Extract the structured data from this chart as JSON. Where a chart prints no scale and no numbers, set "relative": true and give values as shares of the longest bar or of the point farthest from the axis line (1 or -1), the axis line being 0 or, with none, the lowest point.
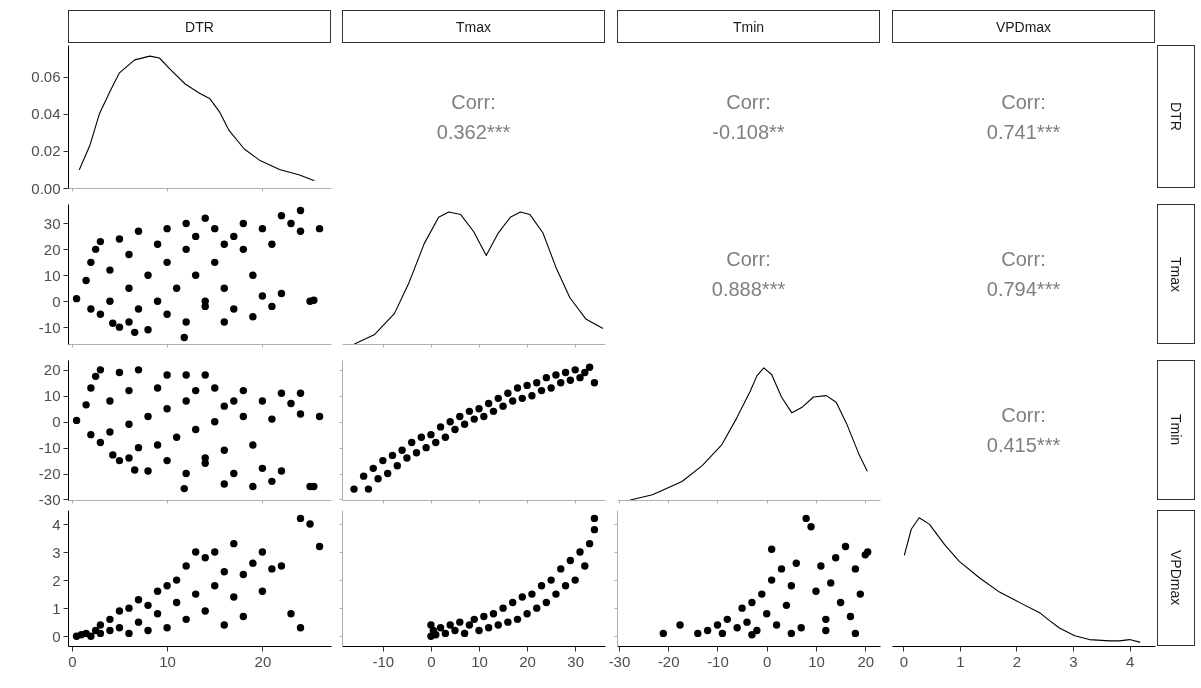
{
  "chart_data": [
    {
      "type": "line",
      "title": "DTR",
      "color": "#000000",
      "xlim": [
        -0.4,
        27.2
      ],
      "xticks": [
        0,
        10,
        20
      ],
      "ylim": [
        0,
        0.077
      ],
      "yticks": [
        {
          "value": 0,
          "label": "0.00"
        },
        0.02,
        0.04,
        0.06
      ],
      "tick_labels": "y",
      "x": [
        0.8,
        1.9,
        2.9,
        4.0,
        5.0,
        6.6,
        8.2,
        9.2,
        10.3,
        11.9,
        13.4,
        14.5,
        15.5,
        16.5,
        18.1,
        19.7,
        21.8,
        23.9,
        25.4
      ],
      "values": [
        0.01,
        0.023,
        0.04,
        0.052,
        0.062,
        0.069,
        0.071,
        0.07,
        0.064,
        0.056,
        0.051,
        0.048,
        0.041,
        0.031,
        0.021,
        0.015,
        0.01,
        0.007,
        0.004
      ]
    },
    {
      "type": "other",
      "title": "Tmax",
      "annotations": [
        "Corr:",
        "0.362***"
      ]
    },
    {
      "type": "other",
      "title": "Tmin",
      "annotations": [
        "Corr:",
        "-0.108**"
      ]
    },
    {
      "type": "other",
      "title": "VPDmax",
      "y2label": "DTR",
      "annotations": [
        "Corr:",
        "0.741***"
      ]
    },
    {
      "type": "scatter",
      "color": "#000000",
      "marker": "circle",
      "xlim": [
        -0.4,
        27.2
      ],
      "xticks": [
        0,
        10,
        20
      ],
      "ylim": [
        -16.5,
        37.5
      ],
      "yticks": [
        -10,
        0,
        10,
        20,
        30
      ],
      "tick_labels": "y",
      "x": [
        0.5,
        1.5,
        2,
        2.5,
        2,
        3,
        3,
        4,
        4,
        4.3,
        5,
        5,
        6,
        6,
        6,
        6.6,
        7,
        7,
        8,
        8,
        9,
        9,
        10,
        10,
        10,
        11,
        11.8,
        12,
        12,
        12,
        13,
        13,
        14,
        14,
        14,
        15,
        15,
        16,
        16,
        16,
        17,
        17,
        18,
        18,
        19,
        19,
        20,
        20,
        21,
        21,
        22,
        22,
        23,
        24,
        24,
        25,
        25.4,
        26
      ],
      "values": [
        1,
        8,
        15,
        20,
        -3,
        -5,
        23,
        0,
        12,
        -8.5,
        24,
        -10,
        -8,
        5,
        18,
        -12,
        27,
        -3,
        10,
        -11,
        22,
        0,
        28,
        -5,
        15,
        5,
        -14,
        30,
        -8,
        20,
        10,
        25,
        32,
        0,
        -2,
        15,
        28,
        22,
        5,
        -8,
        -3,
        25,
        20,
        30,
        10,
        -6,
        28,
        2,
        22,
        -2,
        3,
        33,
        30,
        35,
        27,
        0,
        0.4,
        28
      ]
    },
    {
      "type": "line",
      "color": "#000000",
      "relative": true,
      "xlim": [
        -18.5,
        36.2
      ],
      "xticks": [
        -10,
        0,
        10,
        20,
        30
      ],
      "tick_labels": false,
      "x": [
        -15.9,
        -11.8,
        -7.6,
        -4.5,
        -1.4,
        1.6,
        3.7,
        6.2,
        8.9,
        11.5,
        14.0,
        16.5,
        18.6,
        20.6,
        23.3,
        26.0,
        28.9,
        32.2,
        35.7
      ],
      "values": [
        0,
        0.07,
        0.23,
        0.47,
        0.76,
        0.96,
        1,
        0.98,
        0.85,
        0.67,
        0.84,
        0.96,
        1,
        0.98,
        0.84,
        0.58,
        0.35,
        0.19,
        0.12
      ]
    },
    {
      "type": "other",
      "annotations": [
        "Corr:",
        "0.888***"
      ]
    },
    {
      "type": "other",
      "y2label": "Tmax",
      "annotations": [
        "Corr:",
        "0.794***"
      ]
    },
    {
      "type": "scatter",
      "color": "#000000",
      "marker": "circle",
      "xlim": [
        -0.4,
        27.2
      ],
      "xticks": [
        0,
        10,
        20
      ],
      "ylim": [
        -30.2,
        23.8
      ],
      "yticks": [
        -30,
        -20,
        -10,
        0,
        10,
        20
      ],
      "tick_labels": "y",
      "x": [
        0.5,
        1.5,
        2,
        2.5,
        2,
        3,
        3,
        4,
        4,
        4.3,
        5,
        5,
        6,
        6,
        6,
        6.6,
        7,
        7,
        8,
        8,
        9,
        9,
        10,
        10,
        10,
        11,
        11.8,
        12,
        12,
        12,
        13,
        13,
        14,
        14,
        14,
        15,
        15,
        16,
        16,
        16,
        17,
        17,
        18,
        18,
        19,
        19,
        20,
        20,
        21,
        21,
        22,
        22,
        23,
        24,
        24,
        25,
        25.4,
        26
      ],
      "values": [
        0.5,
        6.5,
        13,
        17.5,
        -5,
        -8,
        20,
        -4,
        8,
        -12.8,
        19,
        -15,
        -14,
        -1,
        12,
        -18.6,
        20,
        -10,
        2,
        -19,
        13,
        -9,
        18,
        -15,
        5,
        -6,
        -25.8,
        18,
        -20,
        8,
        -3,
        12,
        18,
        -14,
        -16,
        0,
        13,
        6,
        -11,
        -24,
        -20,
        8,
        2,
        12,
        -9,
        -25,
        8,
        -18,
        1,
        -23,
        -19,
        11,
        7,
        11,
        3,
        -25,
        -25,
        2
      ]
    },
    {
      "type": "scatter",
      "color": "#000000",
      "marker": "circle",
      "xlim": [
        -18.5,
        36.2
      ],
      "xticks": [
        -10,
        0,
        10,
        20,
        30
      ],
      "ylim": [
        -30.2,
        23.8
      ],
      "yticks": [
        -30,
        -20,
        -10,
        0,
        10,
        20
      ],
      "tick_labels": false,
      "x": [
        -16,
        -14,
        -13,
        -12,
        -11,
        -10,
        -9,
        -8,
        -7,
        -6,
        -5,
        -4,
        -3,
        -2,
        -1,
        0,
        1,
        2,
        3,
        4,
        5,
        6,
        7,
        8,
        9,
        10,
        11,
        12,
        13,
        14,
        15,
        16,
        17,
        18,
        19,
        20,
        21,
        22,
        23,
        24,
        25,
        26,
        27,
        28,
        29,
        30,
        31,
        32,
        33,
        34
      ],
      "values": [
        -26,
        -21,
        -26,
        -18,
        -22,
        -15,
        -20,
        -13,
        -17,
        -11,
        -14,
        -8,
        -12,
        -6,
        -10,
        -5,
        -8,
        -2,
        -6,
        0,
        -3,
        2,
        -1,
        4,
        1,
        5,
        2,
        7,
        4,
        9,
        6,
        11,
        8,
        13,
        9,
        14,
        10,
        15,
        12,
        17,
        13,
        18,
        15,
        19,
        16,
        20,
        17,
        19,
        21,
        15
      ]
    },
    {
      "type": "line",
      "color": "#000000",
      "relative": true,
      "xlim": [
        -30.4,
        23
      ],
      "xticks": [
        -30,
        -20,
        -10,
        0,
        10,
        20
      ],
      "tick_labels": false,
      "x": [
        -27.7,
        -23.2,
        -17.2,
        -13.1,
        -9.1,
        -6.1,
        -3.4,
        -2.0,
        -0.6,
        1.0,
        3.0,
        5.1,
        7.1,
        9.5,
        12.1,
        14.1,
        16.2,
        18.8,
        20.4
      ],
      "values": [
        0,
        0.04,
        0.14,
        0.26,
        0.42,
        0.62,
        0.82,
        0.94,
        1,
        0.95,
        0.78,
        0.66,
        0.7,
        0.78,
        0.79,
        0.74,
        0.58,
        0.34,
        0.22
      ]
    },
    {
      "type": "other",
      "y2label": "Tmin",
      "annotations": [
        "Corr:",
        "0.415***"
      ]
    },
    {
      "type": "scatter",
      "color": "#000000",
      "marker": "circle",
      "xlim": [
        -0.4,
        27.2
      ],
      "ylim": [
        -0.35,
        4.5
      ],
      "xticks": [
        0,
        10,
        20
      ],
      "yticks": [
        0,
        1,
        2,
        3,
        4
      ],
      "x": [
        0.5,
        1,
        1.5,
        2,
        2.5,
        3,
        3,
        4,
        4,
        5,
        5,
        6,
        6,
        7,
        7,
        8,
        8,
        9,
        9,
        10,
        10,
        11,
        11,
        12,
        12,
        13,
        13,
        14,
        14,
        15,
        15,
        16,
        16,
        17,
        17,
        18,
        18,
        19,
        20,
        20,
        21,
        22,
        23,
        24,
        24,
        25,
        26
      ],
      "values": [
        0,
        0.05,
        0.1,
        0,
        0.2,
        0.1,
        0.4,
        0.2,
        0.6,
        0.3,
        0.9,
        0.1,
        1.0,
        0.5,
        1.3,
        0.2,
        1.1,
        0.8,
        1.6,
        0.3,
        1.8,
        1.2,
        2.0,
        0.6,
        2.5,
        1.5,
        3.0,
        0.9,
        2.8,
        1.8,
        3.0,
        0.4,
        2.3,
        1.4,
        3.3,
        2.2,
        0.7,
        2.6,
        1.6,
        3.0,
        2.4,
        2.5,
        0.8,
        4.2,
        0.3,
        4.0,
        3.2
      ]
    },
    {
      "type": "scatter",
      "color": "#000000",
      "marker": "circle",
      "xlim": [
        -18.5,
        36.2
      ],
      "ylim": [
        -0.35,
        4.5
      ],
      "xticks": [
        -10,
        0,
        10,
        20,
        30
      ],
      "yticks": [
        0,
        1,
        2,
        3,
        4
      ],
      "tick_labels": "x",
      "x": [
        0,
        0,
        0.5,
        1,
        2,
        3,
        4,
        5,
        6,
        7,
        8,
        9,
        10,
        11,
        12,
        13,
        14,
        15,
        16,
        17,
        18,
        19,
        20,
        21,
        22,
        23,
        24,
        25,
        26,
        27,
        28,
        29,
        30,
        31,
        32,
        33,
        34,
        34
      ],
      "values": [
        0,
        0.4,
        0.2,
        0.05,
        0.3,
        0.1,
        0.4,
        0.2,
        0.5,
        0.1,
        0.4,
        0.6,
        0.2,
        0.7,
        0.3,
        0.8,
        0.4,
        1.0,
        0.5,
        1.2,
        0.6,
        1.4,
        0.8,
        1.5,
        1.0,
        1.8,
        1.2,
        2.0,
        1.5,
        2.4,
        1.8,
        2.7,
        2.0,
        3.0,
        2.5,
        3.3,
        4.2,
        3.8
      ]
    },
    {
      "type": "scatter",
      "color": "#000000",
      "marker": "circle",
      "xlim": [
        -30.4,
        23
      ],
      "ylim": [
        -0.35,
        4.5
      ],
      "xticks": [
        -30,
        -20,
        -10,
        0,
        10,
        20
      ],
      "yticks": [
        0,
        1,
        2,
        3,
        4
      ],
      "tick_labels": "x",
      "x": [
        -21,
        -17.6,
        -14,
        -12,
        -10,
        -9,
        -8,
        -6,
        -5,
        -4,
        -3,
        -2,
        -1,
        0,
        1,
        1,
        2,
        3,
        4,
        5,
        6,
        7,
        8,
        9,
        10,
        11,
        12,
        13,
        14,
        15,
        16,
        17,
        18,
        19,
        20,
        20.5,
        -3,
        5,
        12,
        18
      ],
      "values": [
        0.1,
        0.4,
        0.1,
        0.2,
        0.4,
        0.1,
        0.6,
        0.3,
        1.0,
        0.5,
        1.2,
        0.2,
        1.5,
        0.8,
        3.1,
        2.0,
        0.4,
        2.4,
        1.1,
        1.8,
        2.6,
        0.3,
        4.2,
        3.9,
        1.6,
        2.5,
        0.6,
        1.9,
        2.8,
        1.2,
        3.2,
        0.7,
        2.4,
        1.5,
        2.9,
        3.0,
        0.05,
        0.1,
        0.2,
        0.1
      ]
    },
    {
      "type": "line",
      "color": "#000000",
      "relative": true,
      "y2label": "VPDmax",
      "xlim": [
        -0.2,
        4.45
      ],
      "xticks": [
        0,
        1,
        2,
        3,
        4
      ],
      "tick_labels": "x",
      "x": [
        0.02,
        0.14,
        0.28,
        0.46,
        0.73,
        0.99,
        1.35,
        1.7,
        2.05,
        2.41,
        2.58,
        2.76,
        3.03,
        3.29,
        3.65,
        3.82,
        4.0,
        4.18
      ],
      "values": [
        0.71,
        0.91,
        1,
        0.95,
        0.79,
        0.66,
        0.53,
        0.42,
        0.34,
        0.26,
        0.2,
        0.14,
        0.08,
        0.05,
        0.04,
        0.04,
        0.05,
        0.03
      ]
    }
  ]
}
